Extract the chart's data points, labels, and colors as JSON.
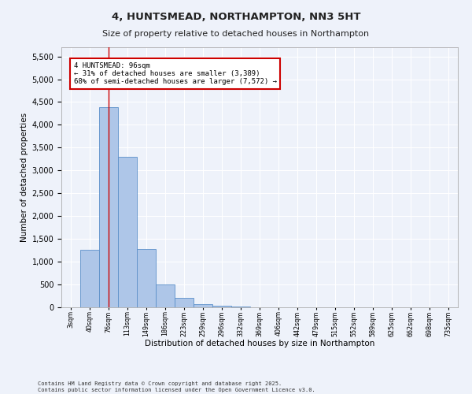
{
  "title_line1": "4, HUNTSMEAD, NORTHAMPTON, NN3 5HT",
  "title_line2": "Size of property relative to detached houses in Northampton",
  "xlabel": "Distribution of detached houses by size in Northampton",
  "ylabel": "Number of detached properties",
  "bins": [
    "3sqm",
    "40sqm",
    "76sqm",
    "113sqm",
    "149sqm",
    "186sqm",
    "223sqm",
    "259sqm",
    "296sqm",
    "332sqm",
    "369sqm",
    "406sqm",
    "442sqm",
    "479sqm",
    "515sqm",
    "552sqm",
    "589sqm",
    "625sqm",
    "662sqm",
    "698sqm",
    "735sqm"
  ],
  "values": [
    0,
    1260,
    4380,
    3300,
    1280,
    500,
    210,
    75,
    30,
    10,
    3,
    0,
    0,
    0,
    0,
    0,
    0,
    0,
    0,
    0,
    0
  ],
  "bar_color": "#aec6e8",
  "bar_edge_color": "#5b8fc9",
  "vline_x_index": 2,
  "vline_color": "#cc0000",
  "annotation_text": "4 HUNTSMEAD: 96sqm\n← 31% of detached houses are smaller (3,389)\n68% of semi-detached houses are larger (7,572) →",
  "annotation_box_color": "#ffffff",
  "annotation_box_edge_color": "#cc0000",
  "ylim": [
    0,
    5700
  ],
  "yticks": [
    0,
    500,
    1000,
    1500,
    2000,
    2500,
    3000,
    3500,
    4000,
    4500,
    5000,
    5500
  ],
  "footer_line1": "Contains HM Land Registry data © Crown copyright and database right 2025.",
  "footer_line2": "Contains public sector information licensed under the Open Government Licence v3.0.",
  "background_color": "#eef2fa",
  "grid_color": "#ffffff",
  "font_color": "#222222"
}
